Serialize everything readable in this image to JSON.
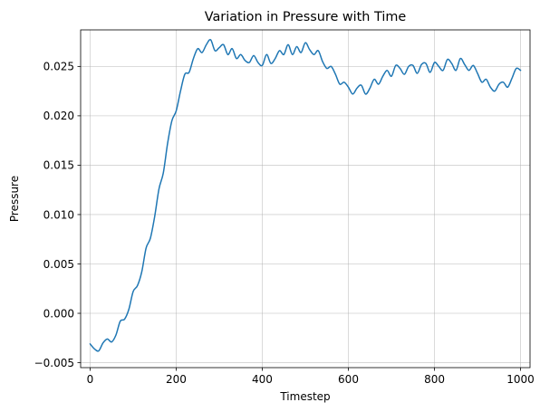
{
  "chart_data": {
    "type": "line",
    "title": "Variation in Pressure with Time",
    "xlabel": "Timestep",
    "ylabel": "Pressure",
    "xlim": [
      -22,
      1022
    ],
    "ylim": [
      -0.0055,
      0.0287
    ],
    "xticks": [
      0,
      200,
      400,
      600,
      800,
      1000
    ],
    "xtick_labels": [
      "0",
      "200",
      "400",
      "600",
      "800",
      "1000"
    ],
    "yticks": [
      -0.005,
      0.0,
      0.005,
      0.01,
      0.015,
      0.02,
      0.025
    ],
    "ytick_labels": [
      "−0.005",
      "0.000",
      "0.005",
      "0.010",
      "0.015",
      "0.020",
      "0.025"
    ],
    "grid": true,
    "series": [
      {
        "color": "#1f77b4",
        "x": [
          0,
          10,
          20,
          30,
          40,
          50,
          60,
          70,
          80,
          90,
          100,
          110,
          120,
          130,
          140,
          150,
          160,
          170,
          180,
          190,
          200,
          210,
          220,
          230,
          240,
          250,
          260,
          270,
          280,
          290,
          300,
          310,
          320,
          330,
          340,
          350,
          360,
          370,
          380,
          390,
          400,
          410,
          420,
          430,
          440,
          450,
          460,
          470,
          480,
          490,
          500,
          510,
          520,
          530,
          540,
          550,
          560,
          570,
          580,
          590,
          600,
          610,
          620,
          630,
          640,
          650,
          660,
          670,
          680,
          690,
          700,
          710,
          720,
          730,
          740,
          750,
          760,
          770,
          780,
          790,
          800,
          810,
          820,
          830,
          840,
          850,
          860,
          870,
          880,
          890,
          900,
          910,
          920,
          930,
          940,
          950,
          960,
          970,
          980,
          990,
          1000
        ],
        "y": [
          -0.0031,
          -0.0036,
          -0.0038,
          -0.003,
          -0.0026,
          -0.0029,
          -0.0022,
          -0.0008,
          -0.0006,
          0.0004,
          0.0022,
          0.0028,
          0.0042,
          0.0066,
          0.0076,
          0.0098,
          0.0126,
          0.0142,
          0.0172,
          0.0195,
          0.0205,
          0.0225,
          0.0242,
          0.0244,
          0.0258,
          0.0268,
          0.0264,
          0.0272,
          0.0277,
          0.0266,
          0.0269,
          0.0272,
          0.0262,
          0.0268,
          0.0258,
          0.0262,
          0.0256,
          0.0254,
          0.0261,
          0.0254,
          0.0251,
          0.0262,
          0.0253,
          0.0258,
          0.0266,
          0.0262,
          0.0272,
          0.0262,
          0.027,
          0.0264,
          0.0274,
          0.0267,
          0.0262,
          0.0266,
          0.0255,
          0.0248,
          0.025,
          0.0242,
          0.0232,
          0.0234,
          0.0229,
          0.0222,
          0.0228,
          0.0231,
          0.0222,
          0.0228,
          0.0237,
          0.0232,
          0.024,
          0.0246,
          0.024,
          0.0251,
          0.0248,
          0.0242,
          0.025,
          0.0251,
          0.0243,
          0.0252,
          0.0253,
          0.0244,
          0.0254,
          0.025,
          0.0246,
          0.0257,
          0.0253,
          0.0246,
          0.0258,
          0.0252,
          0.0246,
          0.0251,
          0.0243,
          0.0234,
          0.0237,
          0.0229,
          0.0225,
          0.0232,
          0.0234,
          0.0229,
          0.0238,
          0.0248,
          0.0246
        ]
      }
    ]
  }
}
